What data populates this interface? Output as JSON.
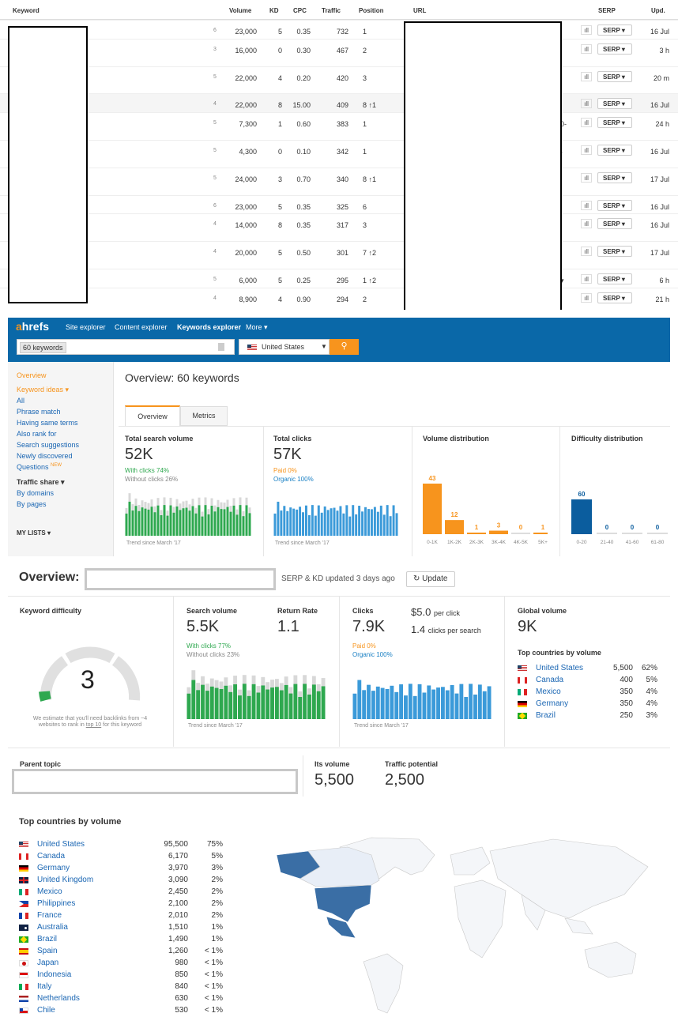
{
  "table": {
    "headers": {
      "keyword": "Keyword",
      "volume": "Volume",
      "kd": "KD",
      "cpc": "CPC",
      "traffic": "Traffic",
      "position": "Position",
      "url": "URL",
      "serp": "SERP",
      "upd": "Upd."
    },
    "serp_label": "SERP",
    "rows": [
      {
        "badge": "6",
        "volume": "23,000",
        "kd": "5",
        "cpc": "0.35",
        "traffic": "732",
        "position": "1",
        "upd": "16 Jul"
      },
      {
        "badge": "3",
        "volume": "16,000",
        "kd": "0",
        "cpc": "0.30",
        "traffic": "467",
        "position": "2",
        "upd": "3 h"
      },
      {
        "badge": "5",
        "volume": "22,000",
        "kd": "4",
        "cpc": "0.20",
        "traffic": "420",
        "position": "3",
        "upd": "20 m"
      },
      {
        "badge": "4",
        "volume": "22,000",
        "kd": "8",
        "cpc": "15.00",
        "traffic": "409",
        "position": "8 ↑1",
        "upd": "16 Jul"
      },
      {
        "badge": "5",
        "volume": "7,300",
        "kd": "1",
        "cpc": "0.60",
        "traffic": "383",
        "position": "1",
        "upd": "24 h",
        "url_tail": "0-"
      },
      {
        "badge": "5",
        "volume": "4,300",
        "kd": "0",
        "cpc": "0.10",
        "traffic": "342",
        "position": "1",
        "upd": "16 Jul",
        "url_tail": "-"
      },
      {
        "badge": "5",
        "volume": "24,000",
        "kd": "3",
        "cpc": "0.70",
        "traffic": "340",
        "position": "8 ↑1",
        "upd": "17 Jul"
      },
      {
        "badge": "6",
        "volume": "23,000",
        "kd": "5",
        "cpc": "0.35",
        "traffic": "325",
        "position": "6",
        "upd": "16 Jul"
      },
      {
        "badge": "4",
        "volume": "14,000",
        "kd": "8",
        "cpc": "0.35",
        "traffic": "317",
        "position": "3",
        "upd": "16 Jul"
      },
      {
        "badge": "4",
        "volume": "20,000",
        "kd": "5",
        "cpc": "0.50",
        "traffic": "301",
        "position": "7 ↑2",
        "upd": "17 Jul"
      },
      {
        "badge": "5",
        "volume": "6,000",
        "kd": "5",
        "cpc": "0.25",
        "traffic": "295",
        "position": "1 ↑2",
        "upd": "6 h",
        "url_tail": "▾"
      },
      {
        "badge": "4",
        "volume": "8,900",
        "kd": "4",
        "cpc": "0.90",
        "traffic": "294",
        "position": "2",
        "upd": "21 h"
      }
    ]
  },
  "ahrefs": {
    "logo_a": "a",
    "logo_rest": "hrefs",
    "nav": [
      "Site explorer",
      "Content explorer",
      "Keywords explorer",
      "More ▾"
    ],
    "search_value": "60 keywords",
    "country": "United States",
    "sidebar": {
      "overview": "Overview",
      "keyword_ideas": "Keyword ideas ▾",
      "items": [
        "All",
        "Phrase match",
        "Having same terms",
        "Also rank for",
        "Search suggestions",
        "Newly discovered",
        "Questions"
      ],
      "new_badge": "NEW",
      "traffic_share": "Traffic share ▾",
      "traffic_items": [
        "By domains",
        "By pages"
      ],
      "my_lists": "MY LISTS ▾"
    },
    "title": "Overview: 60 keywords",
    "tabs": [
      "Overview",
      "Metrics"
    ],
    "total_search_volume": {
      "label": "Total search volume",
      "value": "52K",
      "with": "With clicks 74%",
      "without": "Without clicks 26%",
      "trend": "Trend since March '17"
    },
    "total_clicks": {
      "label": "Total clicks",
      "value": "57K",
      "paid": "Paid 0%",
      "organic": "Organic 100%",
      "trend": "Trend since March '17"
    },
    "volume_distribution": {
      "label": "Volume distribution",
      "values": [
        43,
        12,
        1,
        3,
        0,
        1
      ],
      "cats": [
        "0-1K",
        "1K-2K",
        "2K-3K",
        "3K-4K",
        "4K-5K",
        "5K+"
      ]
    },
    "difficulty_distribution": {
      "label": "Difficulty distribution",
      "values": [
        60,
        0,
        0,
        0
      ],
      "cats": [
        "0-20",
        "21-40",
        "41-60",
        "61-80"
      ]
    }
  },
  "overview2": {
    "title": "Overview:",
    "updated": "SERP & KD updated 3 days ago",
    "update_btn": "Update",
    "kd": {
      "label": "Keyword difficulty",
      "value": "3",
      "note1": "We estimate that you'll need backlinks",
      "note2": "from ~4 websites to rank in",
      "note_link": "top 10",
      "note3": "for this",
      "note4": "keyword"
    },
    "search_volume": {
      "label": "Search volume",
      "value": "5.5K",
      "with": "With clicks 77%",
      "without": "Without clicks 23%",
      "trend": "Trend since March '17"
    },
    "return_rate": {
      "label": "Return Rate",
      "value": "1.1"
    },
    "clicks": {
      "label": "Clicks",
      "value": "7.9K",
      "cpc": "$5.0",
      "cpc_suffix": "per click",
      "cps": "1.4",
      "cps_suffix": "clicks per search",
      "paid": "Paid 0%",
      "organic": "Organic 100%",
      "trend": "Trend since March '17"
    },
    "global_volume": {
      "label": "Global volume",
      "value": "9K",
      "top_label": "Top countries by volume",
      "countries": [
        {
          "flag": "us",
          "name": "United States",
          "vol": "5,500",
          "pct": "62%"
        },
        {
          "flag": "ca",
          "name": "Canada",
          "vol": "400",
          "pct": "5%"
        },
        {
          "flag": "mx",
          "name": "Mexico",
          "vol": "350",
          "pct": "4%"
        },
        {
          "flag": "de",
          "name": "Germany",
          "vol": "350",
          "pct": "4%"
        },
        {
          "flag": "br",
          "name": "Brazil",
          "vol": "250",
          "pct": "3%"
        }
      ]
    },
    "parent_topic": {
      "label": "Parent topic"
    },
    "its_volume": {
      "label": "Its volume",
      "value": "5,500"
    },
    "traffic_potential": {
      "label": "Traffic potential",
      "value": "2,500"
    }
  },
  "top_countries": {
    "title": "Top countries by volume",
    "list": [
      {
        "flag": "us",
        "name": "United States",
        "vol": "95,500",
        "pct": "75%"
      },
      {
        "flag": "ca",
        "name": "Canada",
        "vol": "6,170",
        "pct": "5%"
      },
      {
        "flag": "de",
        "name": "Germany",
        "vol": "3,970",
        "pct": "3%"
      },
      {
        "flag": "gb",
        "name": "United Kingdom",
        "vol": "3,090",
        "pct": "2%"
      },
      {
        "flag": "mx",
        "name": "Mexico",
        "vol": "2,450",
        "pct": "2%"
      },
      {
        "flag": "ph",
        "name": "Philippines",
        "vol": "2,100",
        "pct": "2%"
      },
      {
        "flag": "fr",
        "name": "France",
        "vol": "2,010",
        "pct": "2%"
      },
      {
        "flag": "au",
        "name": "Australia",
        "vol": "1,510",
        "pct": "1%"
      },
      {
        "flag": "br",
        "name": "Brazil",
        "vol": "1,490",
        "pct": "1%"
      },
      {
        "flag": "es",
        "name": "Spain",
        "vol": "1,260",
        "pct": "< 1%"
      },
      {
        "flag": "jp",
        "name": "Japan",
        "vol": "980",
        "pct": "< 1%"
      },
      {
        "flag": "id",
        "name": "Indonesia",
        "vol": "850",
        "pct": "< 1%"
      },
      {
        "flag": "it",
        "name": "Italy",
        "vol": "840",
        "pct": "< 1%"
      },
      {
        "flag": "nl",
        "name": "Netherlands",
        "vol": "630",
        "pct": "< 1%"
      },
      {
        "flag": "cl",
        "name": "Chile",
        "vol": "530",
        "pct": "< 1%"
      }
    ]
  },
  "colors": {
    "brand_blue": "#0a68a8",
    "accent_orange": "#f7941d",
    "green": "#2ea84f",
    "bar_blue": "#3b9ad9",
    "dark_blue": "#0b5d9e"
  }
}
